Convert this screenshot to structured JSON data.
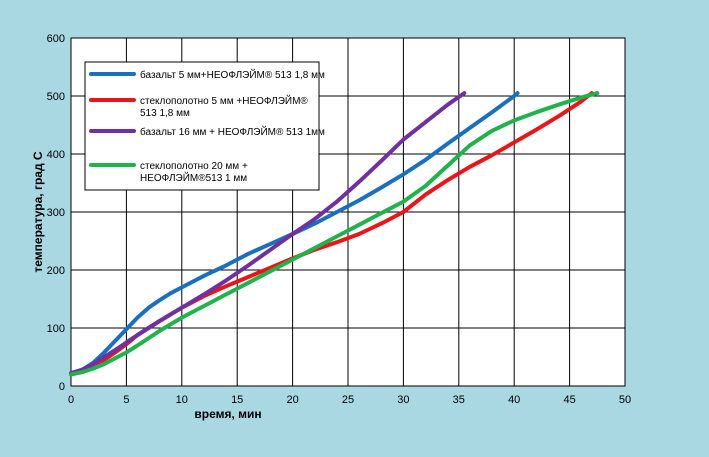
{
  "chart_data": {
    "type": "line",
    "xlabel": "время, мин",
    "ylabel": "температура, град С",
    "xlim": [
      0,
      50
    ],
    "ylim": [
      0,
      600
    ],
    "xticks": [
      0,
      5,
      10,
      15,
      20,
      25,
      30,
      35,
      40,
      45,
      50
    ],
    "yticks": [
      0,
      100,
      200,
      300,
      400,
      500,
      600
    ],
    "grid": true,
    "legend_position": "top-left",
    "series": [
      {
        "name_lines": [
          "базальт 5 мм+НЕОФЛЭЙМ® 513 1,8 мм"
        ],
        "color": "#1a6fbf",
        "points": [
          [
            0,
            22
          ],
          [
            1,
            28
          ],
          [
            2,
            40
          ],
          [
            3,
            58
          ],
          [
            4,
            78
          ],
          [
            5,
            98
          ],
          [
            6,
            118
          ],
          [
            7,
            135
          ],
          [
            8,
            148
          ],
          [
            9,
            160
          ],
          [
            10,
            170
          ],
          [
            12,
            190
          ],
          [
            14,
            208
          ],
          [
            16,
            228
          ],
          [
            18,
            245
          ],
          [
            20,
            262
          ],
          [
            22,
            280
          ],
          [
            24,
            300
          ],
          [
            26,
            320
          ],
          [
            28,
            342
          ],
          [
            30,
            365
          ],
          [
            32,
            390
          ],
          [
            34,
            418
          ],
          [
            36,
            445
          ],
          [
            38,
            472
          ],
          [
            40,
            500
          ],
          [
            40.3,
            505
          ]
        ]
      },
      {
        "name_lines": [
          "стеклополотно 5 мм +НЕОФЛЭЙМ®",
          "513 1,8 мм"
        ],
        "color": "#e8161b",
        "points": [
          [
            0,
            20
          ],
          [
            1,
            24
          ],
          [
            2,
            32
          ],
          [
            3,
            45
          ],
          [
            4,
            58
          ],
          [
            5,
            72
          ],
          [
            6,
            88
          ],
          [
            8,
            112
          ],
          [
            10,
            135
          ],
          [
            12,
            155
          ],
          [
            14,
            172
          ],
          [
            16,
            188
          ],
          [
            18,
            204
          ],
          [
            20,
            220
          ],
          [
            22,
            235
          ],
          [
            24,
            248
          ],
          [
            26,
            262
          ],
          [
            28,
            280
          ],
          [
            30,
            300
          ],
          [
            32,
            330
          ],
          [
            34,
            355
          ],
          [
            36,
            378
          ],
          [
            38,
            398
          ],
          [
            40,
            420
          ],
          [
            42,
            442
          ],
          [
            44,
            465
          ],
          [
            46,
            490
          ],
          [
            47,
            505
          ]
        ]
      },
      {
        "name_lines": [
          "базальт 16 мм + НЕОФЛЭЙМ® 513 1мм"
        ],
        "color": "#7030a0",
        "points": [
          [
            0,
            22
          ],
          [
            1,
            28
          ],
          [
            2,
            38
          ],
          [
            3,
            50
          ],
          [
            4,
            62
          ],
          [
            5,
            75
          ],
          [
            6,
            88
          ],
          [
            8,
            112
          ],
          [
            10,
            135
          ],
          [
            12,
            158
          ],
          [
            14,
            182
          ],
          [
            16,
            208
          ],
          [
            18,
            235
          ],
          [
            20,
            262
          ],
          [
            22,
            288
          ],
          [
            24,
            318
          ],
          [
            26,
            352
          ],
          [
            28,
            388
          ],
          [
            30,
            425
          ],
          [
            32,
            455
          ],
          [
            34,
            485
          ],
          [
            35.5,
            505
          ]
        ]
      },
      {
        "name_lines": [
          "стеклополотно 20 мм +",
          "НЕОФЛЭЙМ®513 1 мм"
        ],
        "color": "#21b24b",
        "points": [
          [
            0,
            20
          ],
          [
            1,
            24
          ],
          [
            2,
            30
          ],
          [
            3,
            38
          ],
          [
            4,
            48
          ],
          [
            5,
            58
          ],
          [
            6,
            70
          ],
          [
            8,
            95
          ],
          [
            10,
            118
          ],
          [
            12,
            138
          ],
          [
            14,
            158
          ],
          [
            16,
            178
          ],
          [
            18,
            198
          ],
          [
            20,
            218
          ],
          [
            22,
            238
          ],
          [
            24,
            258
          ],
          [
            26,
            278
          ],
          [
            28,
            298
          ],
          [
            30,
            318
          ],
          [
            32,
            345
          ],
          [
            34,
            380
          ],
          [
            36,
            415
          ],
          [
            38,
            440
          ],
          [
            40,
            458
          ],
          [
            42,
            472
          ],
          [
            44,
            485
          ],
          [
            46,
            497
          ],
          [
            47.5,
            505
          ]
        ]
      }
    ]
  }
}
